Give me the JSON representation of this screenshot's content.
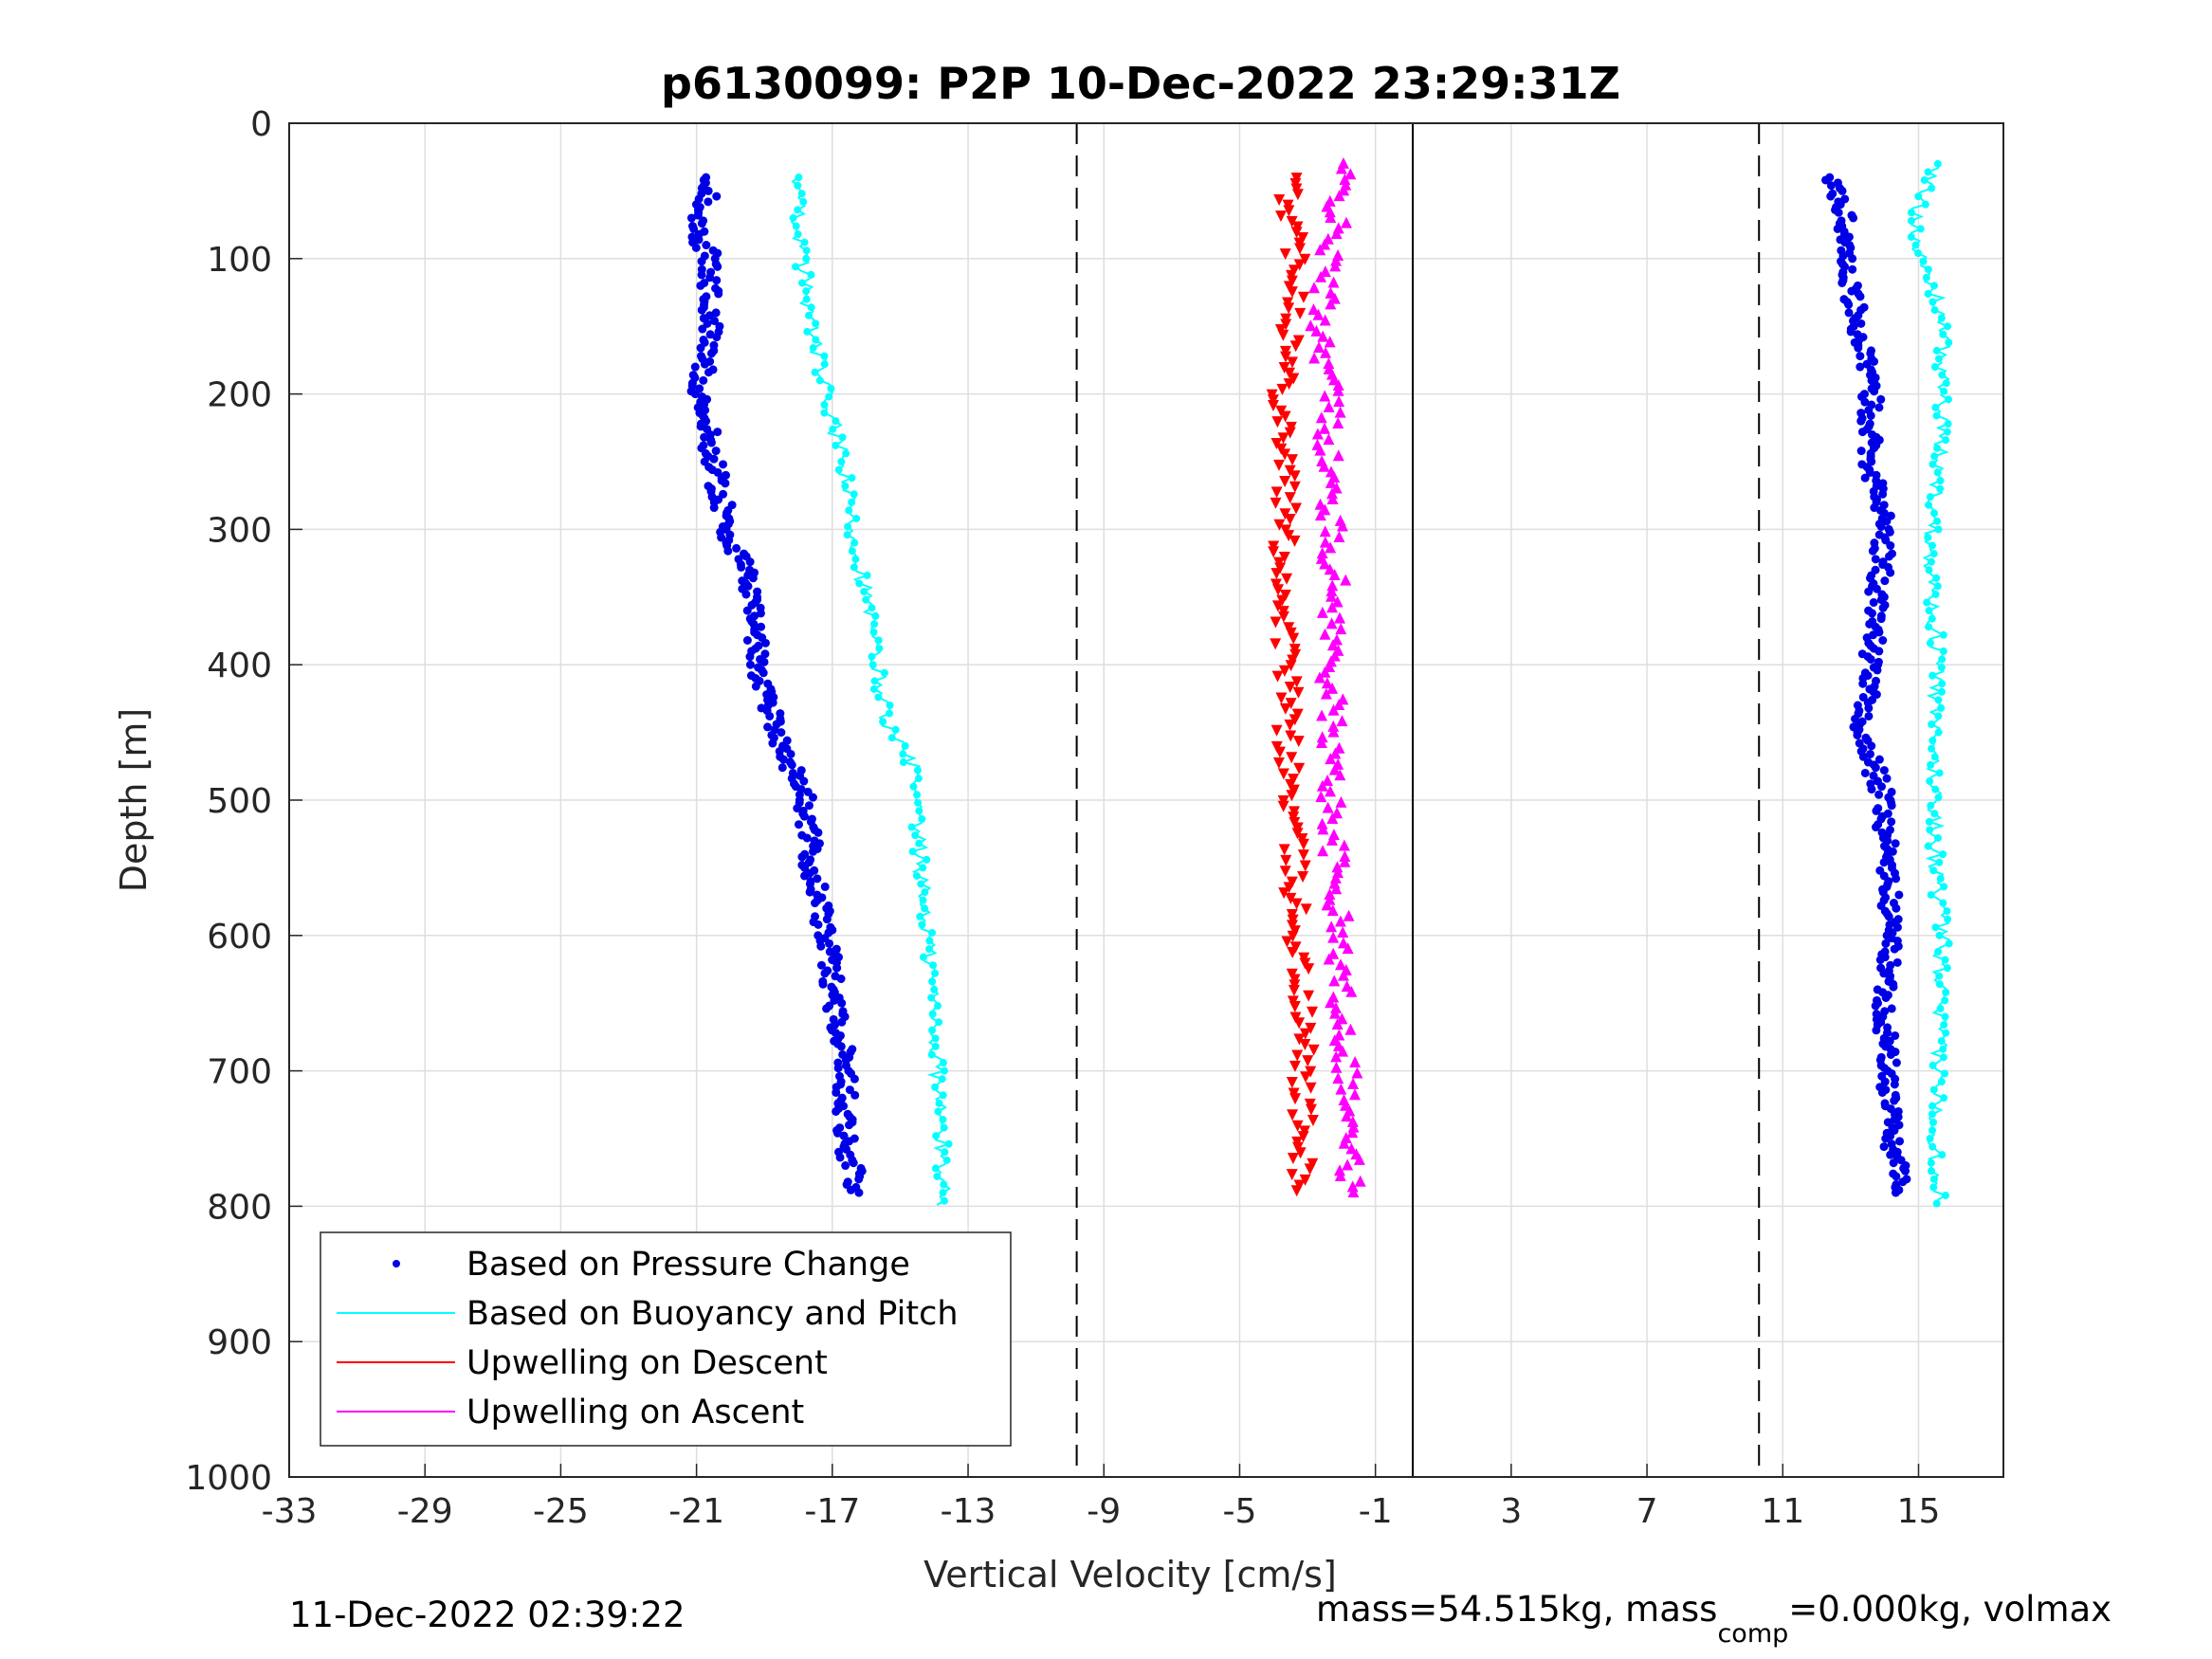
{
  "chart_data": {
    "type": "scatter",
    "title": "p6130099: P2P 10-Dec-2022 23:29:31Z",
    "xlabel": "Vertical Velocity [cm/s]",
    "ylabel": "Depth [m]",
    "xlim": [
      -33,
      17.5
    ],
    "ylim": [
      1000,
      0
    ],
    "y_reversed": true,
    "grid": true,
    "x_ticks": [
      "-33",
      "-29",
      "-25",
      "-21",
      "-17",
      "-13",
      "-9",
      "-5",
      "-1",
      "3",
      "7",
      "11",
      "15"
    ],
    "y_ticks": [
      "0",
      "100",
      "200",
      "300",
      "400",
      "500",
      "600",
      "700",
      "800",
      "900",
      "1000"
    ],
    "reference_lines": {
      "dashed_x": [
        -9.8,
        10.3
      ],
      "solid_x": [
        0.1
      ]
    },
    "legend_position": "bottom-left",
    "legend": [
      "Based on Pressure Change",
      "Based on Buoyancy and Pitch",
      "Upwelling on Descent",
      "Upwelling on Ascent"
    ],
    "series": [
      {
        "name": "Based on Pressure Change",
        "color": "#0000e6",
        "marker": "dot",
        "profiles": [
          {
            "label": "descent",
            "depth": [
              40,
              80,
              100,
              150,
              200,
              250,
              300,
              350,
              400,
              450,
              500,
              550,
              600,
              650,
              700,
              750,
              790
            ],
            "velocity": [
              -20.5,
              -21.0,
              -20.6,
              -20.6,
              -20.9,
              -20.5,
              -20.1,
              -19.3,
              -19.2,
              -18.6,
              -17.8,
              -17.6,
              -17.2,
              -16.9,
              -16.6,
              -16.6,
              -16.3
            ]
          },
          {
            "label": "ascent",
            "depth": [
              790,
              750,
              700,
              650,
              600,
              550,
              500,
              450,
              400,
              350,
              300,
              250,
              200,
              150,
              100,
              60,
              40
            ],
            "velocity": [
              14.6,
              14.2,
              14.1,
              14.0,
              14.2,
              14.1,
              14.0,
              13.3,
              13.6,
              13.8,
              14.0,
              13.6,
              13.6,
              13.2,
              12.9,
              12.8,
              12.3
            ]
          }
        ]
      },
      {
        "name": "Based on Buoyancy and Pitch",
        "color": "#00ffff",
        "marker": "line-dot",
        "profiles": [
          {
            "label": "descent",
            "depth": [
              40,
              100,
              150,
              200,
              250,
              300,
              350,
              400,
              450,
              475,
              500,
              550,
              600,
              650,
              700,
              750,
              800
            ],
            "velocity": [
              -18.1,
              -17.9,
              -17.6,
              -17.2,
              -16.7,
              -16.4,
              -16.0,
              -15.7,
              -15.3,
              -14.6,
              -14.6,
              -14.4,
              -14.2,
              -14.0,
              -13.9,
              -13.8,
              -13.7
            ]
          },
          {
            "label": "ascent",
            "depth": [
              800,
              750,
              700,
              650,
              600,
              550,
              500,
              450,
              400,
              350,
              300,
              250,
              200,
              140,
              100,
              60,
              30
            ],
            "velocity": [
              15.6,
              15.5,
              15.6,
              15.6,
              15.7,
              15.5,
              15.5,
              15.4,
              15.6,
              15.4,
              15.4,
              15.6,
              15.7,
              15.7,
              15.0,
              15.0,
              15.5
            ]
          }
        ]
      },
      {
        "name": "Upwelling on Descent",
        "color": "#ff0000",
        "marker": "triangle-down",
        "depth": [
          40,
          80,
          120,
          160,
          200,
          250,
          300,
          350,
          400,
          450,
          500,
          550,
          600,
          650,
          700,
          750,
          790
        ],
        "velocity": [
          -3.6,
          -3.4,
          -3.2,
          -3.5,
          -3.7,
          -3.6,
          -3.7,
          -3.7,
          -3.6,
          -3.6,
          -3.5,
          -3.4,
          -3.3,
          -3.2,
          -3.1,
          -3.2,
          -3.1
        ]
      },
      {
        "name": "Upwelling on Ascent",
        "color": "#ff00ff",
        "marker": "triangle-up",
        "depth": [
          790,
          750,
          700,
          650,
          600,
          550,
          500,
          450,
          400,
          350,
          300,
          250,
          200,
          150,
          100,
          60,
          30
        ],
        "velocity": [
          -1.7,
          -1.8,
          -1.8,
          -2.0,
          -2.1,
          -2.2,
          -2.3,
          -2.3,
          -2.3,
          -2.2,
          -2.3,
          -2.4,
          -2.3,
          -2.6,
          -2.4,
          -2.1,
          -2.0
        ]
      }
    ]
  },
  "footer": {
    "timestamp": "11-Dec-2022 02:39:22",
    "mass_text": "mass=54.515kg, mass",
    "mass_sub": "comp",
    "mass_tail": "=0.000kg, volmax"
  }
}
